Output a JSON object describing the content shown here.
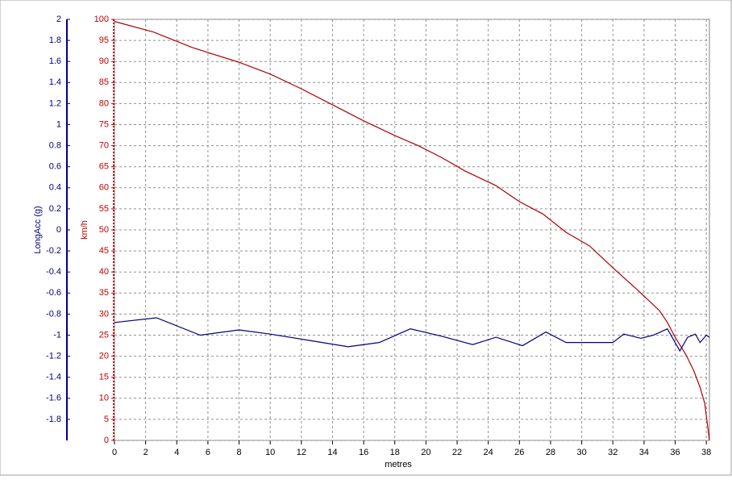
{
  "chart_data": {
    "type": "line",
    "xlabel": "metres",
    "ylabel": "km/h",
    "y2label": "LongAcc (g)",
    "xlim": [
      0,
      38.2
    ],
    "xticks": [
      0,
      2,
      4,
      6,
      8,
      10,
      12,
      14,
      16,
      18,
      20,
      22,
      24,
      26,
      28,
      30,
      32,
      34,
      36,
      38
    ],
    "ylim": [
      0,
      100
    ],
    "yticks": [
      0,
      5,
      10,
      15,
      20,
      25,
      30,
      35,
      40,
      45,
      50,
      55,
      60,
      65,
      70,
      75,
      80,
      85,
      90,
      95,
      100
    ],
    "y2lim": [
      -2,
      2
    ],
    "y2ticks": [
      -1.8,
      -1.6,
      -1.4,
      -1.2,
      -1,
      -0.8,
      -0.6,
      -0.4,
      -0.2,
      0,
      0.2,
      0.4,
      0.6,
      0.8,
      1,
      1.2,
      1.4,
      1.6,
      1.8,
      2
    ],
    "grid": true,
    "ycolor": "#c00000",
    "y2color": "#000080",
    "series": [
      {
        "color": "#b00000",
        "axis": "y",
        "x": [
          0,
          2.5,
          5,
          8,
          10,
          12,
          14,
          16,
          18,
          19.5,
          21,
          22.5,
          24.5,
          26,
          27.5,
          29,
          30.5,
          32,
          33.5,
          35,
          35.5,
          36,
          36.7,
          37.2,
          37.6,
          37.9,
          38.1,
          38.2
        ],
        "values": [
          99.5,
          97,
          93.3,
          89.8,
          87,
          83.5,
          79.7,
          75.9,
          72.4,
          70,
          67.2,
          64,
          60.5,
          56.7,
          53.8,
          49.4,
          46.2,
          41,
          36,
          30.8,
          28,
          24.5,
          20.3,
          16.5,
          12.6,
          8.8,
          3,
          0
        ]
      },
      {
        "color": "#000080",
        "axis": "y2",
        "x": [
          0,
          2.7,
          5.5,
          8,
          10,
          12.5,
          15,
          17,
          19,
          21,
          23,
          24.5,
          26.2,
          27.7,
          29,
          31,
          32,
          32.7,
          33.8,
          34.6,
          35.5,
          36.3,
          36.8,
          37.3,
          37.6,
          38,
          38.2
        ],
        "values": [
          -0.88,
          -0.835,
          -1.0,
          -0.95,
          -0.99,
          -1.05,
          -1.11,
          -1.07,
          -0.94,
          -1.01,
          -1.09,
          -1.02,
          -1.1,
          -0.97,
          -1.07,
          -1.07,
          -1.07,
          -0.99,
          -1.03,
          -1.0,
          -0.94,
          -1.15,
          -1.02,
          -0.99,
          -1.07,
          -1.0,
          -1.02
        ]
      }
    ]
  }
}
